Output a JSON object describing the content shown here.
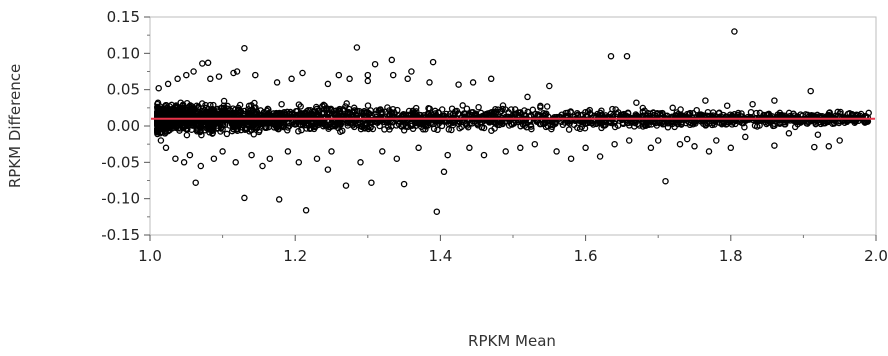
{
  "chart_data": {
    "type": "scatter",
    "title": "",
    "xlabel": "RPKM Mean",
    "ylabel": "RPKM Difference",
    "xlim": [
      1.0,
      2.0
    ],
    "ylim": [
      -0.15,
      0.15
    ],
    "x_ticks": [
      "1.0",
      "1.2",
      "1.4",
      "1.6",
      "1.8",
      "2.0"
    ],
    "y_ticks": [
      "0.15",
      "0.10",
      "0.05",
      "0.00",
      "-0.05",
      "-0.10",
      "-0.15"
    ],
    "grid": false,
    "marker": "open-circle",
    "marker_color": "#000000",
    "reference_line": {
      "y": 0.01,
      "color": "#e8344a"
    },
    "points": [
      [
        1.13,
        0.107
      ],
      [
        1.285,
        0.108
      ],
      [
        1.805,
        0.13
      ],
      [
        1.635,
        0.096
      ],
      [
        1.657,
        0.096
      ],
      [
        1.39,
        0.088
      ],
      [
        1.333,
        0.091
      ],
      [
        1.31,
        0.085
      ],
      [
        1.08,
        0.087
      ],
      [
        1.072,
        0.086
      ],
      [
        1.395,
        -0.118
      ],
      [
        1.215,
        -0.116
      ],
      [
        1.13,
        -0.099
      ],
      [
        1.178,
        -0.101
      ],
      [
        1.35,
        -0.08
      ],
      [
        1.27,
        -0.082
      ],
      [
        1.063,
        -0.078
      ],
      [
        1.71,
        -0.076
      ],
      [
        1.305,
        -0.078
      ],
      [
        1.405,
        -0.063
      ],
      [
        1.155,
        -0.055
      ],
      [
        1.245,
        -0.06
      ],
      [
        1.62,
        -0.042
      ],
      [
        1.58,
        -0.045
      ],
      [
        1.69,
        -0.03
      ],
      [
        1.73,
        -0.025
      ],
      [
        1.75,
        -0.028
      ],
      [
        1.77,
        -0.035
      ],
      [
        1.8,
        -0.03
      ],
      [
        1.86,
        -0.027
      ],
      [
        1.915,
        -0.029
      ],
      [
        1.935,
        -0.028
      ],
      [
        1.94,
        0.012
      ],
      [
        1.96,
        0.008
      ],
      [
        1.975,
        0.015
      ],
      [
        1.985,
        0.005
      ],
      [
        1.99,
        0.018
      ],
      [
        1.91,
        0.048
      ],
      [
        1.86,
        0.035
      ],
      [
        1.83,
        0.03
      ],
      [
        1.795,
        0.028
      ],
      [
        1.765,
        0.035
      ],
      [
        1.72,
        0.025
      ],
      [
        1.67,
        0.032
      ],
      [
        1.55,
        0.055
      ],
      [
        1.52,
        0.04
      ],
      [
        1.47,
        0.065
      ],
      [
        1.445,
        0.06
      ],
      [
        1.425,
        0.057
      ],
      [
        1.385,
        0.06
      ],
      [
        1.36,
        0.075
      ],
      [
        1.355,
        0.065
      ],
      [
        1.335,
        0.07
      ],
      [
        1.3,
        0.07
      ],
      [
        1.3,
        0.062
      ],
      [
        1.275,
        0.065
      ],
      [
        1.26,
        0.07
      ],
      [
        1.245,
        0.058
      ],
      [
        1.21,
        0.073
      ],
      [
        1.195,
        0.065
      ],
      [
        1.175,
        0.06
      ],
      [
        1.145,
        0.07
      ],
      [
        1.12,
        0.075
      ],
      [
        1.115,
        0.073
      ],
      [
        1.095,
        0.068
      ],
      [
        1.083,
        0.065
      ],
      [
        1.06,
        0.075
      ],
      [
        1.05,
        0.07
      ],
      [
        1.038,
        0.065
      ],
      [
        1.025,
        0.058
      ],
      [
        1.012,
        0.052
      ],
      [
        1.015,
        -0.02
      ],
      [
        1.022,
        -0.03
      ],
      [
        1.035,
        -0.045
      ],
      [
        1.047,
        -0.05
      ],
      [
        1.055,
        -0.04
      ],
      [
        1.07,
        -0.055
      ],
      [
        1.088,
        -0.045
      ],
      [
        1.1,
        -0.035
      ],
      [
        1.118,
        -0.05
      ],
      [
        1.14,
        -0.04
      ],
      [
        1.165,
        -0.045
      ],
      [
        1.19,
        -0.035
      ],
      [
        1.205,
        -0.05
      ],
      [
        1.23,
        -0.045
      ],
      [
        1.25,
        -0.035
      ],
      [
        1.29,
        -0.05
      ],
      [
        1.32,
        -0.035
      ],
      [
        1.34,
        -0.045
      ],
      [
        1.37,
        -0.03
      ],
      [
        1.41,
        -0.04
      ],
      [
        1.44,
        -0.03
      ],
      [
        1.46,
        -0.04
      ],
      [
        1.49,
        -0.035
      ],
      [
        1.51,
        -0.03
      ],
      [
        1.53,
        -0.025
      ],
      [
        1.56,
        -0.035
      ],
      [
        1.6,
        -0.03
      ],
      [
        1.64,
        -0.025
      ],
      [
        1.66,
        -0.02
      ],
      [
        1.7,
        -0.02
      ],
      [
        1.74,
        -0.018
      ],
      [
        1.78,
        -0.02
      ],
      [
        1.82,
        -0.015
      ],
      [
        1.88,
        -0.01
      ],
      [
        1.92,
        -0.012
      ],
      [
        1.95,
        -0.02
      ]
    ],
    "dense_band": {
      "x_from": 1.01,
      "x_to": 1.99,
      "y_center": 0.01,
      "y_halfwidth_start": 0.032,
      "y_halfwidth_end": 0.014
    }
  }
}
